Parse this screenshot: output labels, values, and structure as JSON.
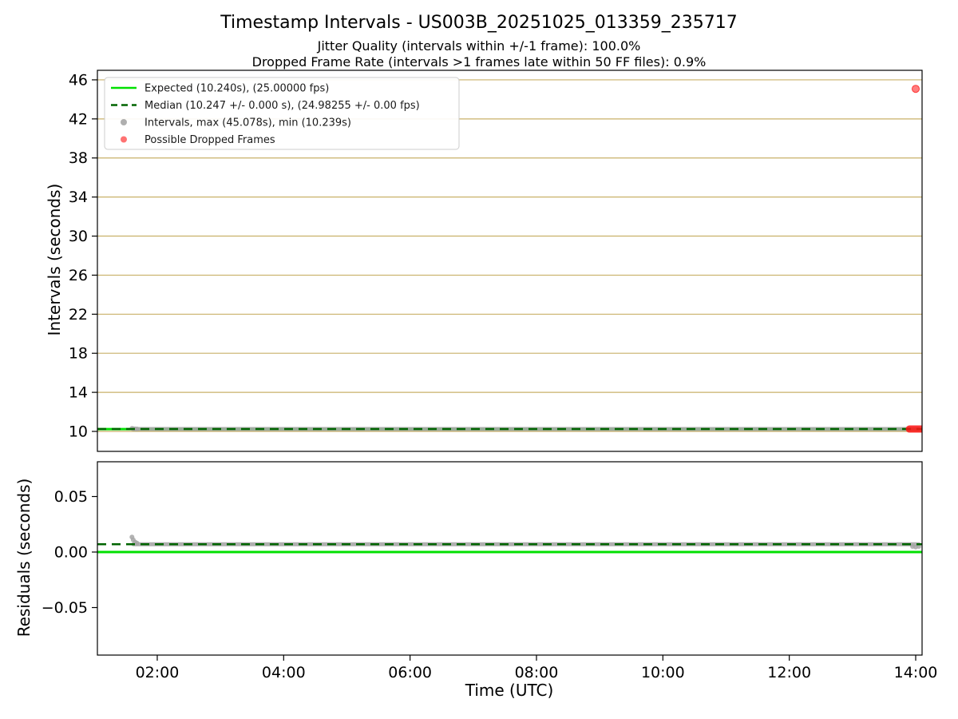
{
  "figure": {
    "title": "Timestamp Intervals - US003B_20251025_013359_235717",
    "subtitle1": "Jitter Quality (intervals within +/-1 frame): 100.0%",
    "subtitle2": "Dropped Frame Rate (intervals >1 frames late within 50 FF files): 0.9%"
  },
  "stats": {
    "jitter_quality_pct": "100.0%",
    "dropped_frame_rate_pct": "0.9%",
    "ff_files": 50,
    "expected_interval_s": 10.24,
    "expected_fps": "25.00000",
    "median_interval_s": "10.247 +/- 0.000",
    "median_fps": "24.98255 +/- 0.00",
    "max_interval_s": 45.078,
    "min_interval_s": 10.239
  },
  "colors": {
    "expected": "#00e000",
    "median": "#006400",
    "intervals": "#a6a6a6",
    "dropped": "#ff1414",
    "grid": "#c9b168",
    "axis": "#000000",
    "legend_border": "#cccccc",
    "text": "#000000"
  },
  "legend": {
    "items": [
      {
        "label": "Expected (10.240s), (25.00000 fps)",
        "marker": "line",
        "color_key": "expected"
      },
      {
        "label": "Median (10.247 +/- 0.000 s), (24.98255 +/- 0.00 fps)",
        "marker": "dashed-line",
        "color_key": "median"
      },
      {
        "label": "Intervals, max (45.078s), min (10.239s)",
        "marker": "dot",
        "color_key": "intervals"
      },
      {
        "label": "Possible Dropped Frames",
        "marker": "dot",
        "color_key": "dropped"
      }
    ]
  },
  "chart_data": [
    {
      "type": "scatter",
      "name": "intervals-plot",
      "ylabel": "Intervals (seconds)",
      "ylim": [
        7.955,
        46.977
      ],
      "yticks": [
        10,
        14,
        18,
        22,
        26,
        30,
        34,
        38,
        42,
        46
      ],
      "xlim_hours": [
        1.053,
        14.101
      ],
      "xticks": [
        {
          "hour": 2,
          "label": "02:00"
        },
        {
          "hour": 4,
          "label": "04:00"
        },
        {
          "hour": 6,
          "label": "06:00"
        },
        {
          "hour": 8,
          "label": "08:00"
        },
        {
          "hour": 10,
          "label": "10:00"
        },
        {
          "hour": 12,
          "label": "12:00"
        },
        {
          "hour": 14,
          "label": "14:00"
        }
      ],
      "show_x_labels": false,
      "grid": true,
      "expected_line": 10.24,
      "median_line": 10.247,
      "interval_run": {
        "start_hour": 1.62,
        "end_hour": 14.05,
        "value": 10.244
      },
      "start_cluster": [
        [
          1.6,
          10.31
        ],
        [
          1.62,
          10.28
        ],
        [
          1.65,
          10.26
        ],
        [
          1.68,
          10.25
        ]
      ],
      "dropped_run": {
        "start_hour": 13.9,
        "end_hour": 14.1,
        "value": 10.244
      },
      "dropped_outlier": {
        "hour": 14.0,
        "value": 45.078
      },
      "max_interval": 45.078,
      "min_interval": 10.239
    },
    {
      "type": "scatter",
      "name": "residuals-plot",
      "ylabel": "Residuals (seconds)",
      "xlabel": "Time (UTC)",
      "ylim": [
        -0.0928,
        0.0813
      ],
      "yticks": [
        -0.05,
        0,
        0.05
      ],
      "ytick_labels": [
        "−0.05",
        "0.00",
        "0.05"
      ],
      "xlim_hours": [
        1.053,
        14.101
      ],
      "show_x_labels": true,
      "grid": false,
      "expected_line": 0.0,
      "median_line": 0.007,
      "residual_run": {
        "start_hour": 1.62,
        "end_hour": 14.05,
        "value": 0.007
      },
      "start_cluster": [
        [
          1.6,
          0.0135
        ],
        [
          1.62,
          0.011
        ],
        [
          1.65,
          0.009
        ],
        [
          1.68,
          0.008
        ]
      ],
      "end_cluster": [
        [
          13.95,
          0.005
        ],
        [
          14.0,
          0.0045
        ],
        [
          14.05,
          0.005
        ]
      ]
    }
  ]
}
